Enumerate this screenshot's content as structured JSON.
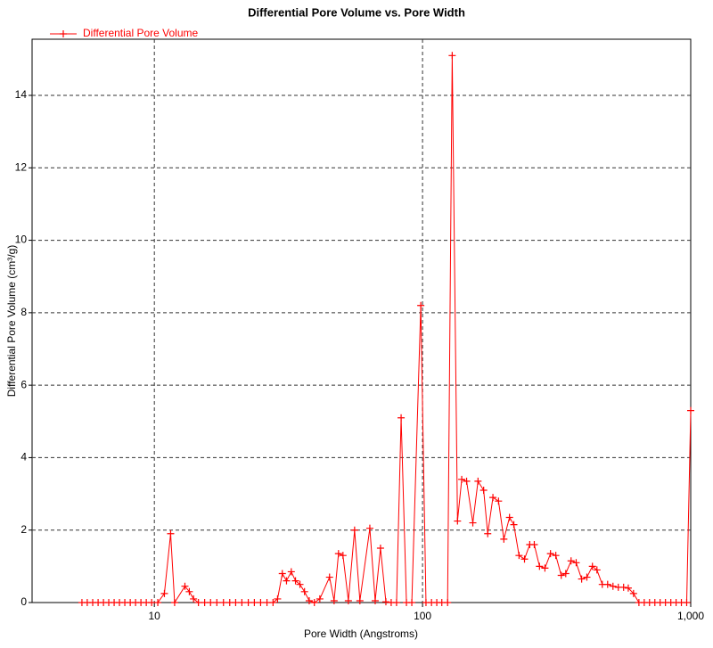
{
  "chart_data": {
    "type": "line",
    "title": "Differential Pore Volume vs. Pore Width",
    "x_label": "Pore Width (Angstroms)",
    "y_label": "Differential Pore Volume (cm³/g)",
    "x_log": true,
    "grid": true,
    "legend": "top-left",
    "xlim": [
      3.5,
      1000
    ],
    "ylim": [
      0,
      15.55
    ],
    "xticks": [
      10,
      100,
      {
        "value": 1000,
        "label": "1,000"
      }
    ],
    "yticks": [
      0,
      2,
      4,
      6,
      8,
      10,
      12,
      14
    ],
    "x": [
      5.37,
      5.62,
      5.89,
      6.17,
      6.46,
      6.76,
      7.08,
      7.41,
      7.76,
      8.13,
      8.51,
      8.91,
      9.33,
      9.77,
      10.3,
      10.9,
      11.5,
      11.9,
      13.0,
      13.5,
      14.0,
      14.6,
      15.4,
      16.2,
      17.1,
      18.1,
      19.1,
      20.1,
      21.2,
      22.4,
      23.6,
      24.9,
      26.3,
      27.7,
      28.8,
      30.0,
      31.1,
      32.4,
      33.6,
      34.9,
      36.3,
      37.8,
      39.5,
      41.4,
      45.0,
      46.8,
      48.6,
      50.5,
      52.9,
      55.8,
      58.4,
      63.6,
      66.6,
      69.7,
      73.0,
      76.4,
      80.0,
      83.2,
      87.1,
      91.2,
      98.5,
      103,
      108,
      113,
      118,
      124,
      129,
      135,
      140,
      146,
      154,
      161,
      169,
      175,
      183,
      192,
      201,
      211,
      219,
      229,
      240,
      251,
      261,
      273,
      286,
      300,
      314,
      329,
      342,
      358,
      374,
      392,
      410,
      430,
      447,
      468,
      490,
      513,
      537,
      562,
      585,
      612,
      641,
      671,
      702,
      735,
      769,
      805,
      843,
      882,
      923,
      966,
      1000
    ],
    "series": [
      {
        "name": "Differential Pore Volume",
        "color": "#ff0000",
        "values": [
          0,
          0,
          0,
          0,
          0,
          0,
          0,
          0,
          0,
          0,
          0,
          0,
          0,
          0,
          0,
          0.25,
          1.9,
          0,
          0.45,
          0.3,
          0.1,
          0,
          0,
          0,
          0,
          0,
          0,
          0,
          0,
          0,
          0,
          0,
          0,
          0,
          0.1,
          0.8,
          0.6,
          0.85,
          0.6,
          0.5,
          0.3,
          0.05,
          0,
          0.1,
          0.7,
          0.05,
          1.35,
          1.3,
          0.05,
          2.0,
          0.05,
          2.05,
          0.05,
          1.5,
          0.02,
          0,
          0,
          5.1,
          0,
          0,
          8.2,
          0,
          0,
          0,
          0,
          0,
          15.1,
          2.25,
          3.4,
          3.35,
          2.2,
          3.35,
          3.1,
          1.9,
          2.9,
          2.8,
          1.75,
          2.35,
          2.15,
          1.3,
          1.2,
          1.6,
          1.6,
          1.0,
          0.95,
          1.35,
          1.3,
          0.75,
          0.8,
          1.15,
          1.1,
          0.65,
          0.7,
          1.0,
          0.9,
          0.5,
          0.5,
          0.45,
          0.42,
          0.42,
          0.4,
          0.25,
          0,
          0,
          0,
          0,
          0,
          0,
          0,
          0,
          0,
          0,
          5.3
        ]
      }
    ]
  }
}
